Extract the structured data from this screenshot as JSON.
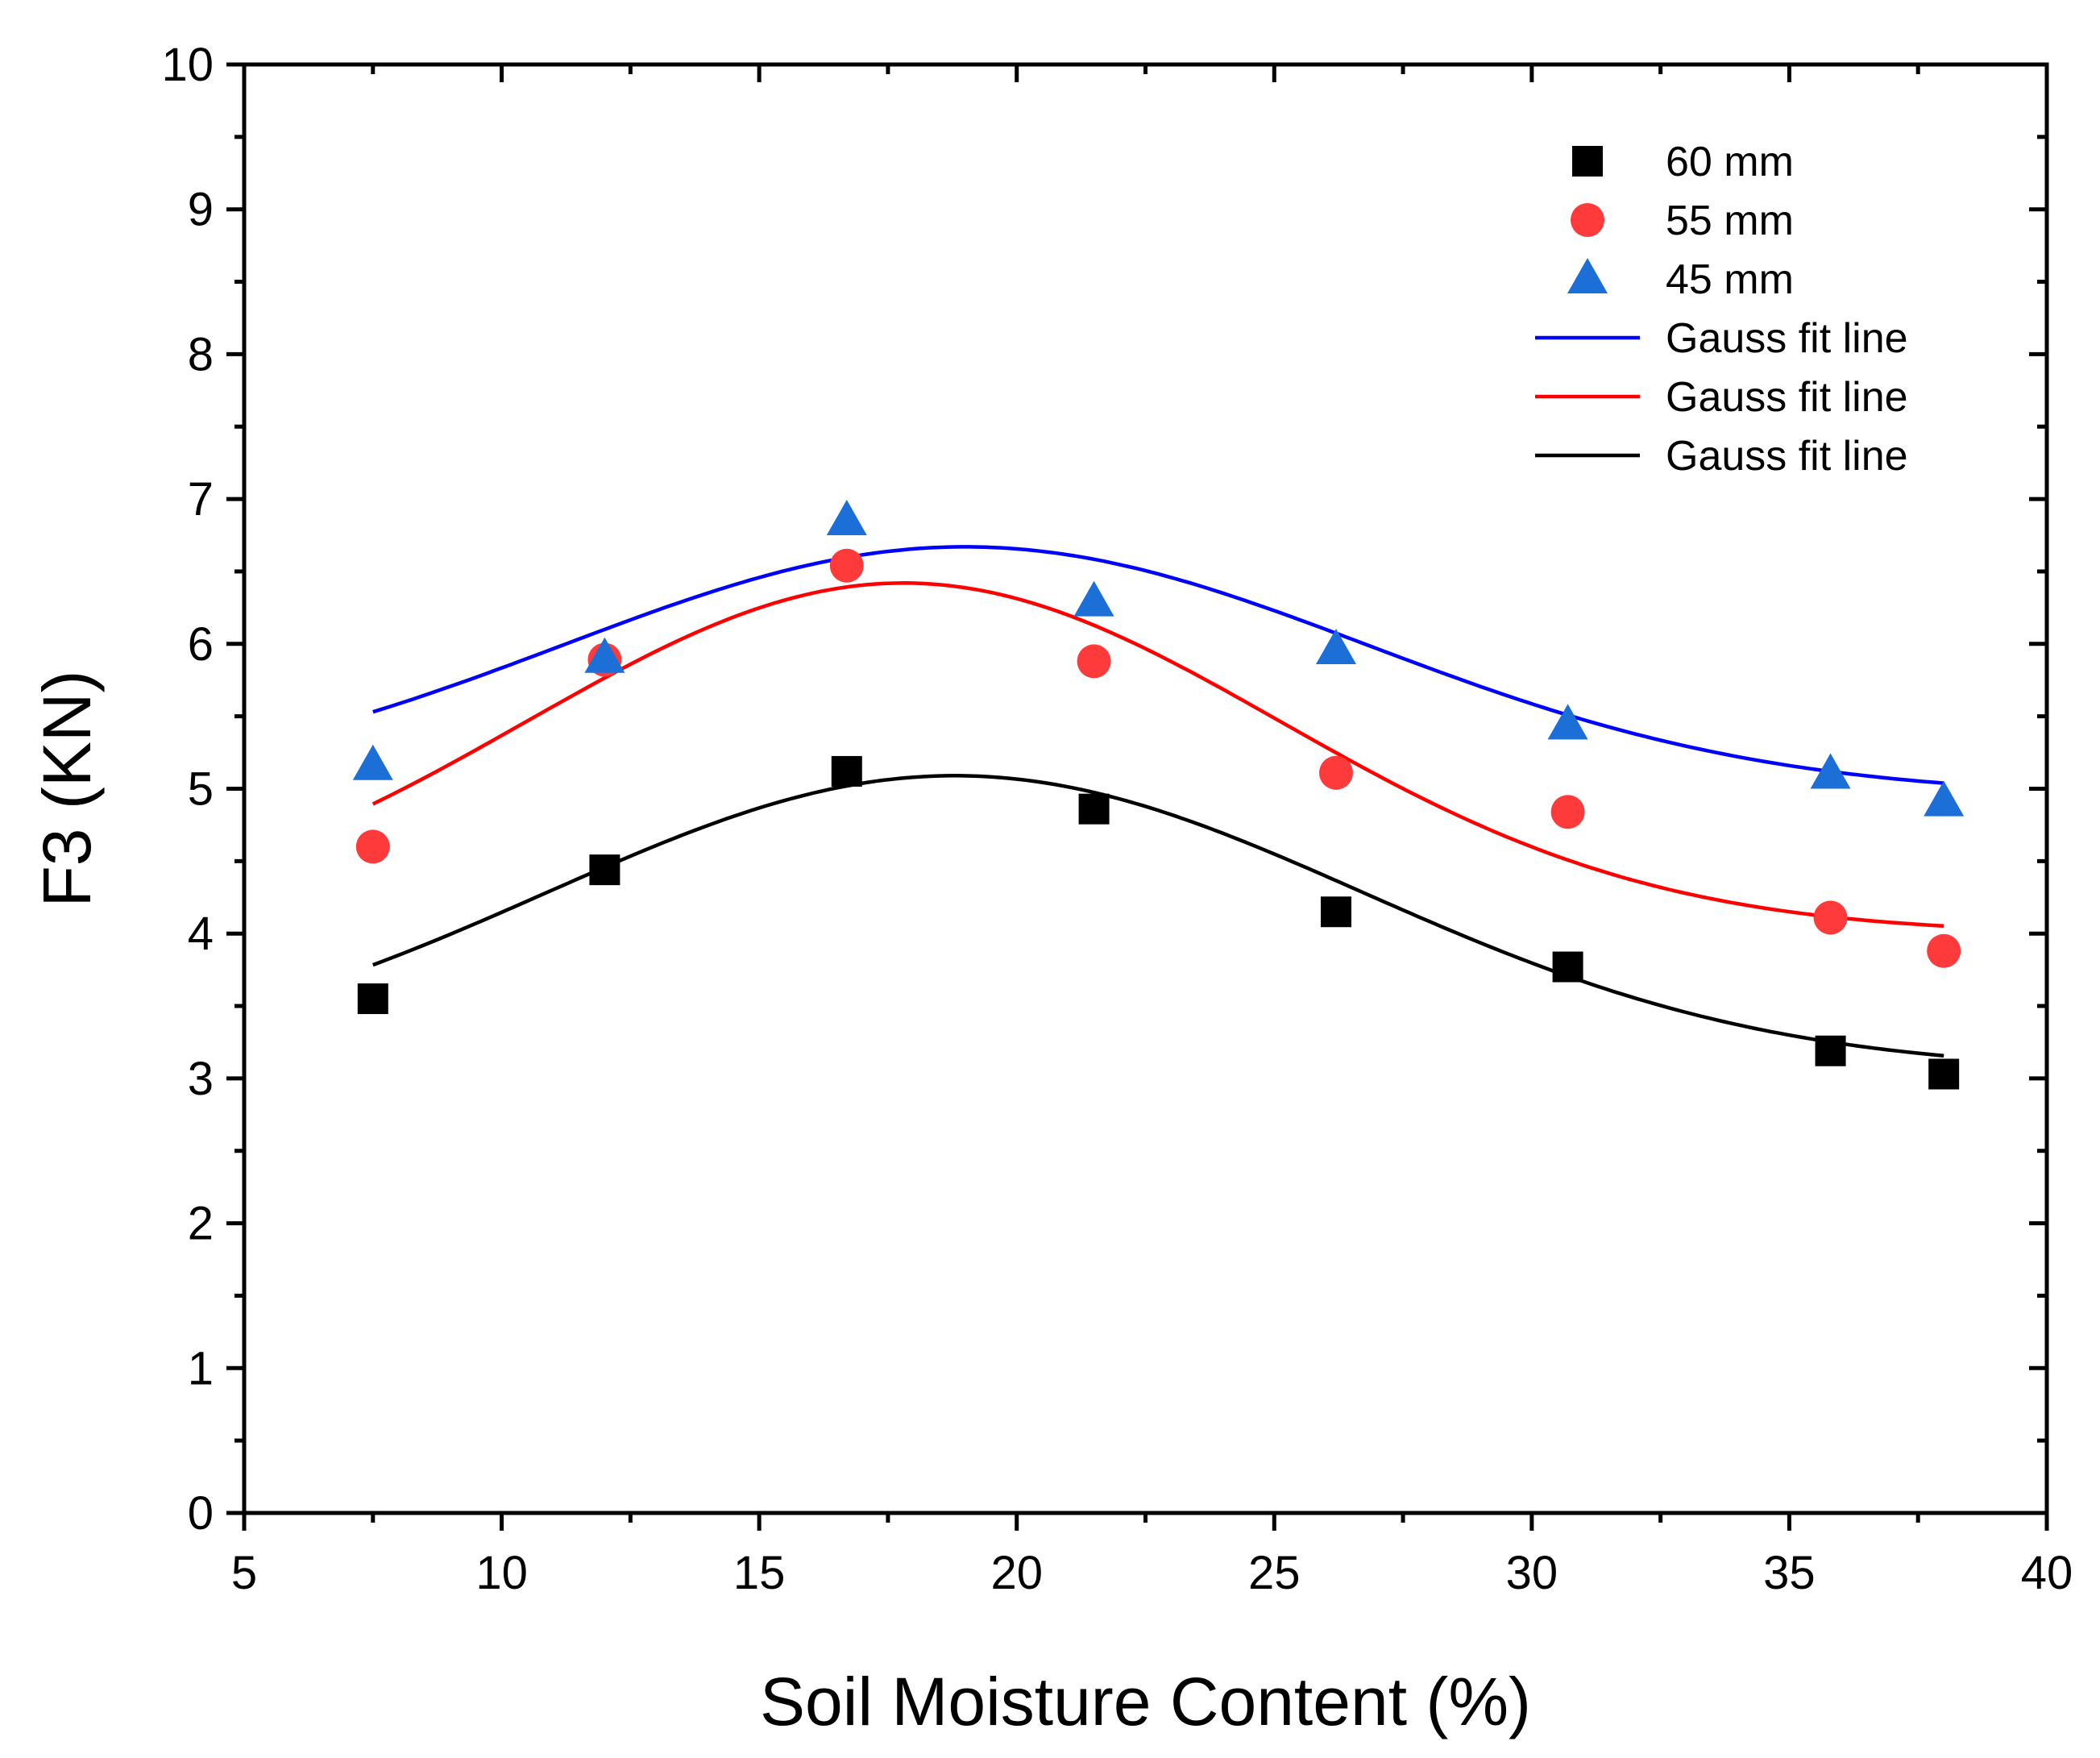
{
  "chart_data": {
    "type": "scatter",
    "title": "",
    "xlabel": "Soil Moisture Content (%)",
    "ylabel": "F3 (KN)",
    "xlim": [
      5,
      40
    ],
    "ylim": [
      0,
      10
    ],
    "x_ticks": [
      5,
      10,
      15,
      20,
      25,
      30,
      35,
      40
    ],
    "y_ticks": [
      0,
      1,
      2,
      3,
      4,
      5,
      6,
      7,
      8,
      9,
      10
    ],
    "x_tick_labels": [
      "5",
      "10",
      "15",
      "20",
      "25",
      "30",
      "35",
      "40"
    ],
    "y_tick_labels": [
      "0",
      "1",
      "2",
      "3",
      "4",
      "5",
      "6",
      "7",
      "8",
      "9",
      "10"
    ],
    "x": [
      7.5,
      12.0,
      16.7,
      21.5,
      26.2,
      30.7,
      35.8,
      38.0
    ],
    "series": [
      {
        "name": "60 mm",
        "marker": "square",
        "color": "#000000",
        "values": [
          3.55,
          4.44,
          5.12,
          4.86,
          4.15,
          3.77,
          3.19,
          3.03
        ]
      },
      {
        "name": "55 mm",
        "marker": "circle",
        "color": "#ff3a3a",
        "values": [
          4.6,
          5.89,
          6.54,
          5.88,
          5.11,
          4.84,
          4.11,
          3.88
        ]
      },
      {
        "name": "45 mm",
        "marker": "triangle",
        "color": "#1c6fd6",
        "values": [
          5.16,
          5.9,
          6.85,
          6.29,
          5.96,
          5.44,
          5.1,
          4.91
        ]
      }
    ],
    "fit_lines": [
      {
        "name": "Gauss fit line",
        "color": "#0000ff",
        "x_range": [
          7.5,
          38.0
        ],
        "y0": 4.95,
        "A": 1.72,
        "xc": 19.0,
        "w": 7.8
      },
      {
        "name": "Gauss fit line",
        "color": "#ff0000",
        "x_range": [
          7.5,
          38.0
        ],
        "y0": 4.0,
        "A": 2.42,
        "xc": 17.8,
        "w": 7.3
      },
      {
        "name": "Gauss fit line",
        "color": "#000000",
        "x_range": [
          7.5,
          38.0
        ],
        "y0": 3.05,
        "A": 2.04,
        "xc": 18.8,
        "w": 7.9
      }
    ],
    "legend": {
      "position": "top-right",
      "entries": [
        {
          "label": "60 mm",
          "kind": "square",
          "color": "#000000"
        },
        {
          "label": "55 mm",
          "kind": "circle",
          "color": "#ff3a3a"
        },
        {
          "label": "45 mm",
          "kind": "triangle",
          "color": "#1c6fd6"
        },
        {
          "label": "Gauss fit line",
          "kind": "line",
          "color": "#0000ff"
        },
        {
          "label": "Gauss fit line",
          "kind": "line",
          "color": "#ff0000"
        },
        {
          "label": "Gauss fit line",
          "kind": "line",
          "color": "#000000"
        }
      ]
    }
  }
}
